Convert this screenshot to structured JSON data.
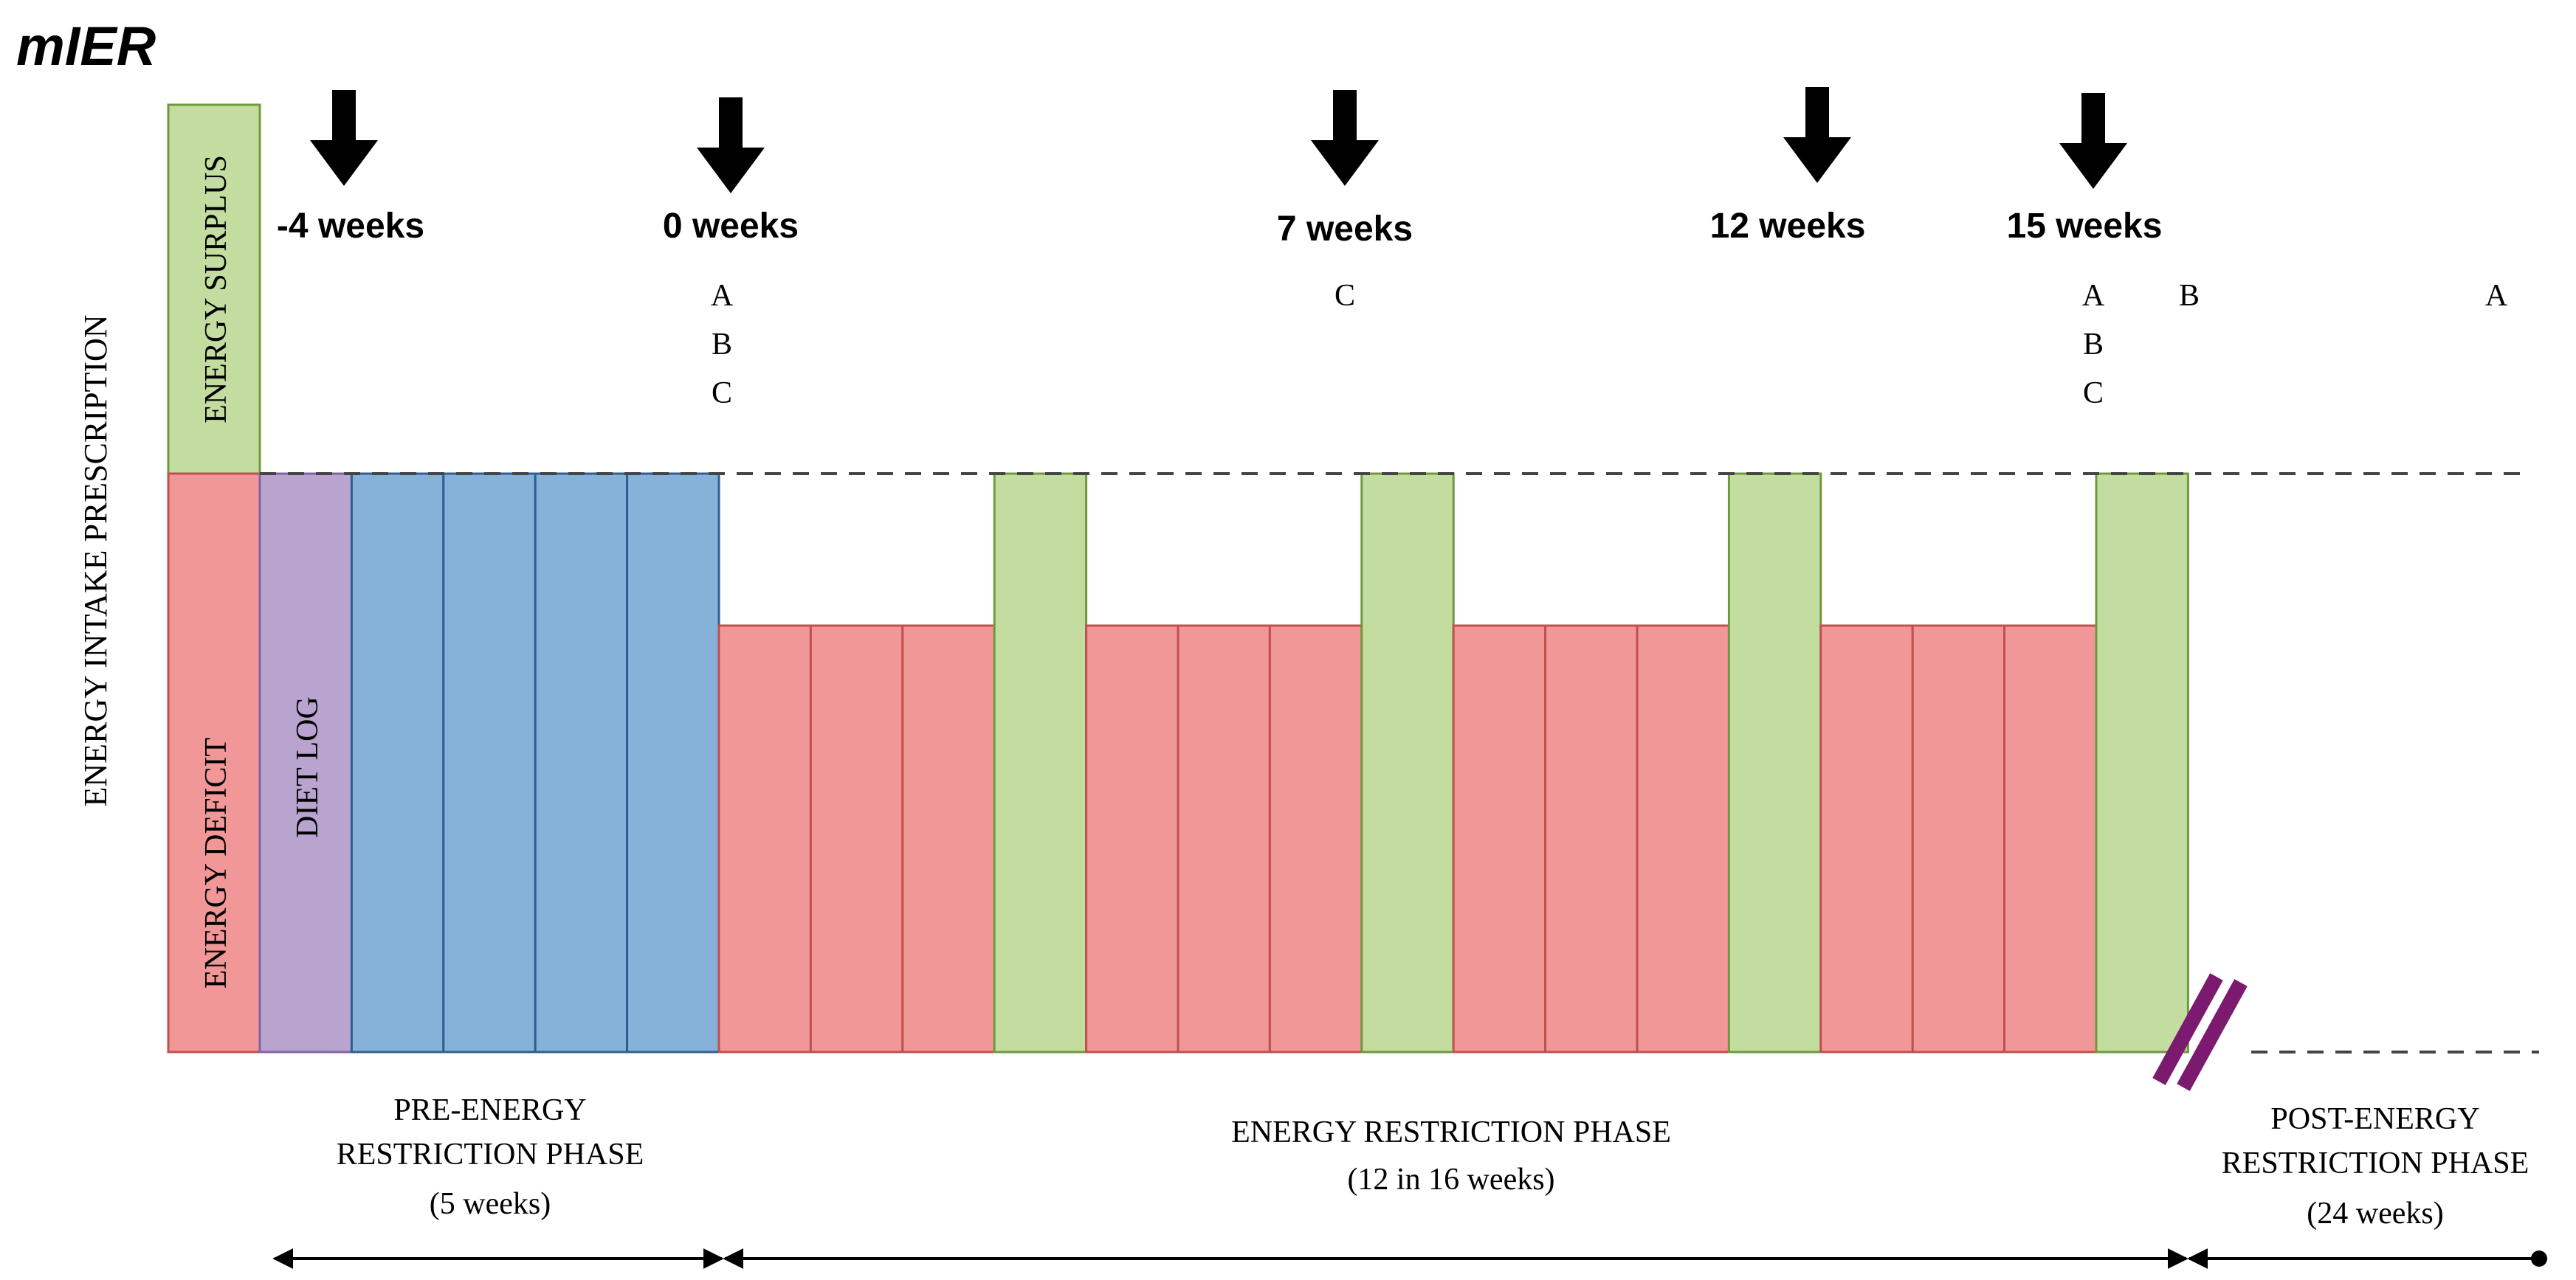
{
  "title": "mIER",
  "y_axis_label": "ENERGY INTAKE PRESCRIPTION",
  "legend_bars": {
    "surplus": "ENERGY SURPLUS",
    "deficit": "ENERGY DEFICIT",
    "diet_log": "DIET LOG"
  },
  "timepoints": [
    {
      "label": "-4 weeks"
    },
    {
      "label": "0 weeks",
      "measures": [
        "A",
        "B",
        "C"
      ]
    },
    {
      "label": "7 weeks",
      "measures": [
        "C"
      ]
    },
    {
      "label": "12 weeks"
    },
    {
      "label": "15 weeks",
      "measures": [
        "A",
        "B",
        "C"
      ]
    }
  ],
  "extra_markers": {
    "b_after_15": "B",
    "a_end": "A"
  },
  "phases": {
    "pre": {
      "line1": "PRE-ENERGY",
      "line2": "RESTRICTION PHASE",
      "duration": "(5 weeks)"
    },
    "restriction": {
      "line1": "ENERGY RESTRICTION PHASE",
      "duration": "(12 in 16 weeks)"
    },
    "post": {
      "line1": "POST-ENERGY",
      "line2": "RESTRICTION PHASE",
      "duration": "(24 weeks)"
    }
  },
  "schedule": {
    "pre_phase_weeks": [
      "diet-log",
      "baseline",
      "baseline",
      "baseline",
      "baseline"
    ],
    "restriction_phase_weeks": [
      "deficit",
      "deficit",
      "deficit",
      "balance",
      "deficit",
      "deficit",
      "deficit",
      "balance",
      "deficit",
      "deficit",
      "deficit",
      "balance",
      "deficit",
      "deficit",
      "deficit",
      "balance"
    ]
  },
  "colors": {
    "surplus": "#c3dca0",
    "surplus_stroke": "#6e9a3c",
    "deficit": "#f19797",
    "deficit_stroke": "#c0504d",
    "diet_log": "#b9a3cf",
    "diet_log_stroke": "#8064a2",
    "baseline": "#86b2d9",
    "baseline_stroke": "#2f5f8f",
    "break_mark": "#7b1a6e"
  }
}
